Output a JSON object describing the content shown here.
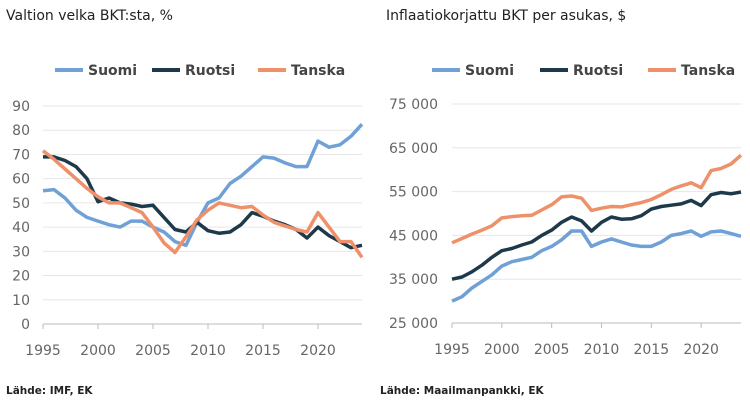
{
  "chart_data": [
    {
      "type": "line",
      "title": "Valtion velka BKT:sta, %",
      "source": "Lähde: IMF, EK",
      "x": [
        1995,
        1996,
        1997,
        1998,
        1999,
        2000,
        2001,
        2002,
        2003,
        2004,
        2005,
        2006,
        2007,
        2008,
        2009,
        2010,
        2011,
        2012,
        2013,
        2014,
        2015,
        2016,
        2017,
        2018,
        2019,
        2020,
        2021,
        2022,
        2023,
        2024
      ],
      "xticks": [
        "1995",
        "2000",
        "2005",
        "2010",
        "2015",
        "2020"
      ],
      "yticks": [
        "0",
        "10",
        "20",
        "30",
        "40",
        "50",
        "60",
        "70",
        "80",
        "90"
      ],
      "ylim": [
        0,
        90
      ],
      "legend": "top",
      "grid": true,
      "series": [
        {
          "name": "Suomi",
          "color": "#6fa0d6",
          "values": [
            55,
            55.5,
            52,
            47,
            44,
            42.5,
            41,
            40,
            42.5,
            42.5,
            40,
            38,
            34,
            32.5,
            42,
            50,
            52,
            58,
            61,
            65,
            69,
            68.5,
            66.5,
            65,
            65,
            75.5,
            73,
            74,
            77.5,
            82.5
          ]
        },
        {
          "name": "Ruotsi",
          "color": "#1e3a4a",
          "values": [
            69,
            69,
            67.5,
            65,
            60,
            50.5,
            52,
            50,
            49.5,
            48.5,
            49,
            44,
            39,
            38,
            42,
            38.5,
            37.5,
            38,
            41,
            46,
            44.5,
            42.5,
            41,
            39,
            35.5,
            40,
            36.5,
            34,
            31.5,
            32.5
          ]
        },
        {
          "name": "Tanska",
          "color": "#ee916a",
          "values": [
            71.5,
            68,
            64,
            60,
            56,
            52.5,
            50,
            50,
            48,
            46,
            40,
            33.5,
            29.5,
            36,
            43,
            47,
            50,
            49,
            48,
            48.5,
            45,
            42,
            40.5,
            39,
            38,
            46,
            40,
            34,
            34,
            27.5
          ]
        }
      ]
    },
    {
      "type": "line",
      "title": "Inflaatiokorjattu BKT per asukas, $",
      "source": "Lähde: Maailmanpankki, EK",
      "x": [
        1995,
        1996,
        1997,
        1998,
        1999,
        2000,
        2001,
        2002,
        2003,
        2004,
        2005,
        2006,
        2007,
        2008,
        2009,
        2010,
        2011,
        2012,
        2013,
        2014,
        2015,
        2016,
        2017,
        2018,
        2019,
        2020,
        2021,
        2022,
        2023,
        2024
      ],
      "xticks": [
        "1995",
        "2000",
        "2005",
        "2010",
        "2015",
        "2020"
      ],
      "yticks": [
        "25 000",
        "35 000",
        "45 000",
        "55 000",
        "65 000",
        "75 000"
      ],
      "ylim": [
        25000,
        75000
      ],
      "legend": "top",
      "grid": true,
      "series": [
        {
          "name": "Suomi",
          "color": "#6fa0d6",
          "values": [
            30000,
            31000,
            33000,
            34500,
            36000,
            38000,
            39000,
            39500,
            40000,
            41500,
            42500,
            44000,
            46000,
            46000,
            42500,
            43500,
            44200,
            43500,
            42800,
            42500,
            42500,
            43500,
            45000,
            45400,
            46000,
            44800,
            45800,
            46000,
            45400,
            44800
          ]
        },
        {
          "name": "Ruotsi",
          "color": "#1e3a4a",
          "values": [
            35000,
            35500,
            36700,
            38200,
            40000,
            41500,
            42000,
            42800,
            43500,
            45000,
            46200,
            48000,
            49200,
            48300,
            46000,
            48000,
            49200,
            48700,
            48800,
            49500,
            51000,
            51600,
            51900,
            52200,
            53000,
            51800,
            54300,
            54800,
            54500,
            54900
          ]
        },
        {
          "name": "Tanska",
          "color": "#ee916a",
          "values": [
            43300,
            44300,
            45300,
            46200,
            47200,
            49000,
            49300,
            49500,
            49600,
            50800,
            52000,
            53800,
            54000,
            53500,
            50700,
            51200,
            51600,
            51500,
            52000,
            52500,
            53200,
            54300,
            55500,
            56300,
            57000,
            55900,
            59800,
            60300,
            61300,
            63300
          ]
        }
      ]
    }
  ]
}
